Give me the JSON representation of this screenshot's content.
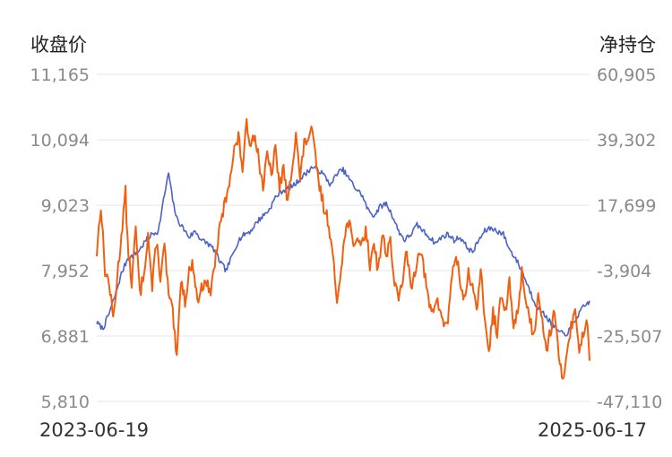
{
  "chart_data": {
    "type": "line",
    "title": "",
    "left_axis_label": "收盘价",
    "right_axis_label": "净持仓",
    "x_start_label": "2023-06-19",
    "x_end_label": "2025-06-17",
    "left_ticks": [
      "11,165",
      "10,094",
      "9,023",
      "7,952",
      "6,881",
      "5,810"
    ],
    "right_ticks": [
      "60,905",
      "39,302",
      "17,699",
      "-3,904",
      "-25,507",
      "-47,110"
    ],
    "left_range": [
      5810,
      11165
    ],
    "right_range": [
      -47110,
      60905
    ],
    "grid": true,
    "series": [
      {
        "axis": "left",
        "color": "#4a63c4",
        "anchors": [
          [
            0,
            7100
          ],
          [
            3,
            7000
          ],
          [
            6,
            7250
          ],
          [
            9,
            7550
          ],
          [
            12,
            7900
          ],
          [
            15,
            8150
          ],
          [
            18,
            8200
          ],
          [
            21,
            8300
          ],
          [
            24,
            8450
          ],
          [
            27,
            8550
          ],
          [
            30,
            8600
          ],
          [
            33,
            9200
          ],
          [
            35,
            9550
          ],
          [
            37,
            9100
          ],
          [
            39,
            8800
          ],
          [
            42,
            8650
          ],
          [
            45,
            8500
          ],
          [
            48,
            8600
          ],
          [
            51,
            8450
          ],
          [
            54,
            8400
          ],
          [
            57,
            8300
          ],
          [
            60,
            8100
          ],
          [
            63,
            7950
          ],
          [
            66,
            8200
          ],
          [
            69,
            8450
          ],
          [
            72,
            8550
          ],
          [
            75,
            8600
          ],
          [
            78,
            8750
          ],
          [
            81,
            8850
          ],
          [
            84,
            8950
          ],
          [
            87,
            9150
          ],
          [
            90,
            9250
          ],
          [
            93,
            9300
          ],
          [
            96,
            9350
          ],
          [
            99,
            9450
          ],
          [
            102,
            9550
          ],
          [
            105,
            9650
          ],
          [
            108,
            9600
          ],
          [
            111,
            9500
          ],
          [
            114,
            9350
          ],
          [
            117,
            9550
          ],
          [
            120,
            9600
          ],
          [
            123,
            9450
          ],
          [
            126,
            9300
          ],
          [
            129,
            9200
          ],
          [
            132,
            8950
          ],
          [
            135,
            8850
          ],
          [
            138,
            9000
          ],
          [
            141,
            9050
          ],
          [
            144,
            8850
          ],
          [
            147,
            8600
          ],
          [
            150,
            8450
          ],
          [
            153,
            8550
          ],
          [
            156,
            8700
          ],
          [
            159,
            8600
          ],
          [
            162,
            8500
          ],
          [
            165,
            8400
          ],
          [
            168,
            8500
          ],
          [
            171,
            8550
          ],
          [
            174,
            8450
          ],
          [
            177,
            8500
          ],
          [
            180,
            8350
          ],
          [
            183,
            8250
          ],
          [
            186,
            8450
          ],
          [
            189,
            8600
          ],
          [
            192,
            8650
          ],
          [
            195,
            8600
          ],
          [
            198,
            8550
          ],
          [
            201,
            8300
          ],
          [
            204,
            8150
          ],
          [
            207,
            7950
          ],
          [
            210,
            7700
          ],
          [
            213,
            7450
          ],
          [
            216,
            7300
          ],
          [
            219,
            7200
          ],
          [
            222,
            7050
          ],
          [
            225,
            6950
          ],
          [
            228,
            6900
          ],
          [
            231,
            7000
          ],
          [
            234,
            7200
          ],
          [
            237,
            7350
          ],
          [
            240,
            7450
          ]
        ]
      },
      {
        "axis": "right",
        "color": "#f06010",
        "anchors": [
          [
            0,
            2000
          ],
          [
            2,
            18000
          ],
          [
            4,
            -4000
          ],
          [
            6,
            -8000
          ],
          [
            8,
            -20000
          ],
          [
            10,
            -6000
          ],
          [
            12,
            8000
          ],
          [
            14,
            22000
          ],
          [
            15,
            5000
          ],
          [
            17,
            -8000
          ],
          [
            19,
            10000
          ],
          [
            21,
            -12000
          ],
          [
            23,
            -4000
          ],
          [
            25,
            8000
          ],
          [
            27,
            -10000
          ],
          [
            29,
            6000
          ],
          [
            31,
            -6000
          ],
          [
            33,
            4000
          ],
          [
            35,
            -12000
          ],
          [
            37,
            -18000
          ],
          [
            39,
            -34000
          ],
          [
            41,
            -6000
          ],
          [
            43,
            -14000
          ],
          [
            45,
            -4000
          ],
          [
            47,
            -2000
          ],
          [
            49,
            -14000
          ],
          [
            51,
            -10000
          ],
          [
            53,
            -6000
          ],
          [
            55,
            -12000
          ],
          [
            57,
            -4000
          ],
          [
            59,
            6000
          ],
          [
            61,
            14000
          ],
          [
            63,
            20000
          ],
          [
            65,
            28000
          ],
          [
            67,
            36000
          ],
          [
            69,
            40000
          ],
          [
            71,
            30000
          ],
          [
            73,
            44000
          ],
          [
            75,
            38000
          ],
          [
            77,
            42000
          ],
          [
            79,
            32000
          ],
          [
            81,
            24000
          ],
          [
            83,
            34000
          ],
          [
            85,
            28000
          ],
          [
            87,
            36000
          ],
          [
            89,
            24000
          ],
          [
            91,
            30000
          ],
          [
            93,
            18000
          ],
          [
            95,
            30000
          ],
          [
            97,
            42000
          ],
          [
            99,
            26000
          ],
          [
            101,
            38000
          ],
          [
            103,
            40000
          ],
          [
            105,
            42000
          ],
          [
            107,
            30000
          ],
          [
            109,
            22000
          ],
          [
            111,
            16000
          ],
          [
            113,
            12000
          ],
          [
            115,
            0
          ],
          [
            117,
            -14000
          ],
          [
            119,
            -2000
          ],
          [
            121,
            8000
          ],
          [
            123,
            14000
          ],
          [
            125,
            2000
          ],
          [
            127,
            8000
          ],
          [
            129,
            4000
          ],
          [
            131,
            10000
          ],
          [
            133,
            -2000
          ],
          [
            135,
            6000
          ],
          [
            137,
            -4000
          ],
          [
            139,
            8000
          ],
          [
            141,
            2000
          ],
          [
            143,
            6000
          ],
          [
            145,
            -8000
          ],
          [
            147,
            -14000
          ],
          [
            149,
            -6000
          ],
          [
            151,
            2000
          ],
          [
            153,
            -10000
          ],
          [
            155,
            -4000
          ],
          [
            157,
            4000
          ],
          [
            159,
            -2000
          ],
          [
            161,
            -12000
          ],
          [
            163,
            -18000
          ],
          [
            165,
            -14000
          ],
          [
            167,
            -16000
          ],
          [
            169,
            -22000
          ],
          [
            171,
            -20000
          ],
          [
            173,
            -6000
          ],
          [
            175,
            2000
          ],
          [
            177,
            -8000
          ],
          [
            179,
            -14000
          ],
          [
            181,
            -4000
          ],
          [
            183,
            -10000
          ],
          [
            185,
            -18000
          ],
          [
            187,
            -2000
          ],
          [
            189,
            -22000
          ],
          [
            191,
            -30000
          ],
          [
            193,
            -18000
          ],
          [
            195,
            -24000
          ],
          [
            197,
            -12000
          ],
          [
            199,
            -18000
          ],
          [
            201,
            -8000
          ],
          [
            203,
            -22000
          ],
          [
            205,
            -18000
          ],
          [
            207,
            -4000
          ],
          [
            209,
            -14000
          ],
          [
            211,
            -20000
          ],
          [
            213,
            -26000
          ],
          [
            215,
            -10000
          ],
          [
            217,
            -20000
          ],
          [
            219,
            -30000
          ],
          [
            221,
            -24000
          ],
          [
            223,
            -16000
          ],
          [
            225,
            -34000
          ],
          [
            227,
            -40000
          ],
          [
            229,
            -30000
          ],
          [
            231,
            -22000
          ],
          [
            233,
            -18000
          ],
          [
            235,
            -30000
          ],
          [
            237,
            -24000
          ],
          [
            239,
            -20000
          ],
          [
            240,
            -34000
          ]
        ]
      }
    ]
  }
}
